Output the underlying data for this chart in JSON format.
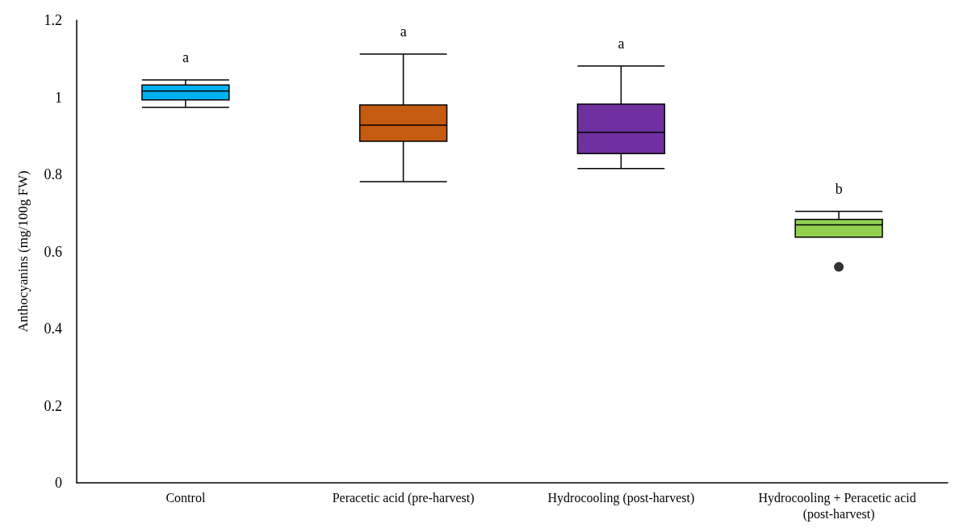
{
  "chart_data": {
    "type": "box",
    "ylabel": "Anthocyanins (mg/100g FW)",
    "categories": [
      "Control",
      "Peracetic acid (pre-harvest)",
      "Hydrocooling (post-harvest)",
      "Hydrocooling + Peracetic acid (post-harvest)"
    ],
    "colors": [
      "#00b0f0",
      "#c55a11",
      "#7030a0",
      "#92d050"
    ],
    "boxes": [
      {
        "low": 0.974,
        "q1": 0.993,
        "median": 1.016,
        "q3": 1.032,
        "high": 1.045
      },
      {
        "low": 0.781,
        "q1": 0.886,
        "median": 0.928,
        "q3": 0.98,
        "high": 1.112
      },
      {
        "low": 0.815,
        "q1": 0.854,
        "median": 0.909,
        "q3": 0.982,
        "high": 1.081
      },
      {
        "low": 0.637,
        "q1": 0.637,
        "median": 0.669,
        "q3": 0.683,
        "high": 0.704,
        "outliers": [
          0.56
        ]
      }
    ],
    "ylim": [
      0,
      1.2
    ],
    "yticks": [
      0,
      0.2,
      0.4,
      0.6,
      0.8,
      1,
      1.2
    ],
    "grid": false,
    "annotations": [
      "a",
      "a",
      "a",
      "b"
    ]
  }
}
